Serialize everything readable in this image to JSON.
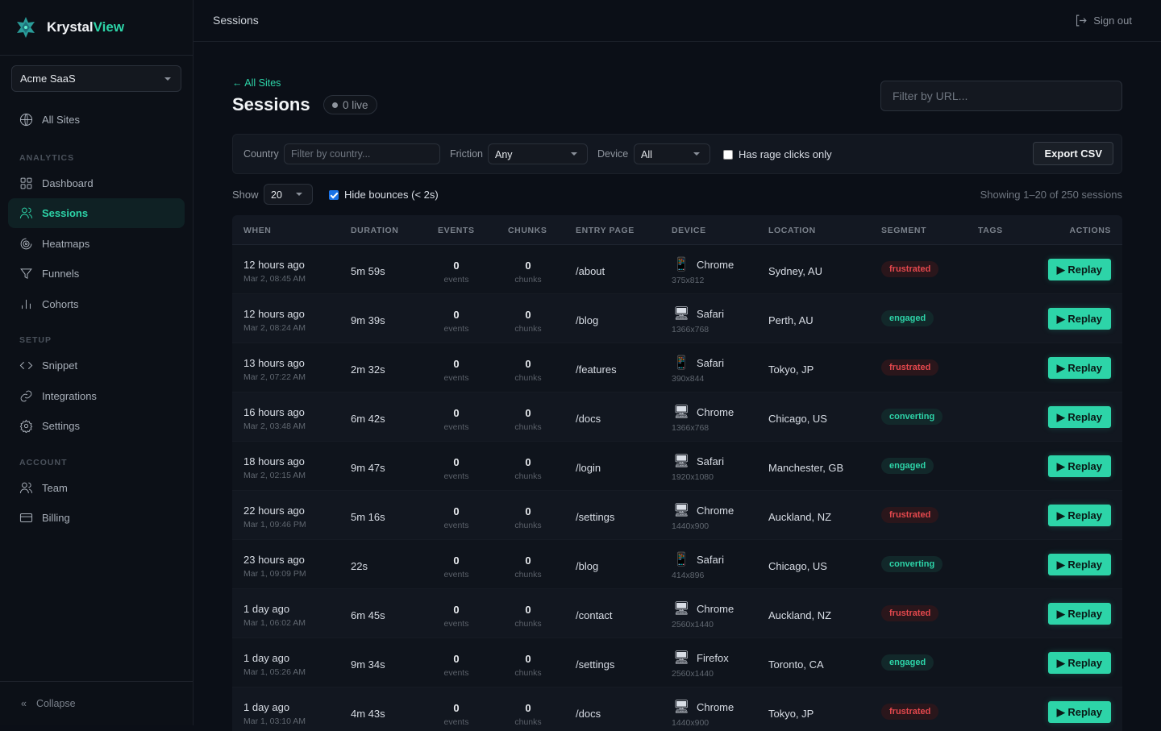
{
  "brand": {
    "name_part1": "Krystal",
    "name_part2": "View",
    "accent": "#2dd4a8"
  },
  "sidebar": {
    "site_selector": "Acme SaaS",
    "all_sites": "All Sites",
    "sections": {
      "analytics": "ANALYTICS",
      "setup": "SETUP",
      "account": "ACCOUNT"
    },
    "items": [
      {
        "label": "Dashboard",
        "icon": "grid-icon"
      },
      {
        "label": "Sessions",
        "icon": "users-icon",
        "active": true
      },
      {
        "label": "Heatmaps",
        "icon": "target-icon"
      },
      {
        "label": "Funnels",
        "icon": "filter-icon"
      },
      {
        "label": "Cohorts",
        "icon": "bar-chart-icon"
      },
      {
        "label": "Snippet",
        "icon": "code-icon"
      },
      {
        "label": "Integrations",
        "icon": "link-icon"
      },
      {
        "label": "Settings",
        "icon": "gear-icon"
      },
      {
        "label": "Team",
        "icon": "users-icon"
      },
      {
        "label": "Billing",
        "icon": "credit-card-icon"
      }
    ],
    "collapse": "Collapse"
  },
  "topbar": {
    "title": "Sessions",
    "sign_out": "Sign out"
  },
  "page": {
    "back": "← All Sites",
    "title": "Sessions",
    "live": "0 live",
    "url_filter_placeholder": "Filter by URL..."
  },
  "filters": {
    "country_label": "Country",
    "country_placeholder": "Filter by country...",
    "friction_label": "Friction",
    "friction_value": "Any",
    "device_label": "Device",
    "device_value": "All",
    "rage_label": "Has rage clicks only",
    "rage_checked": false,
    "export": "Export CSV"
  },
  "list": {
    "show_label": "Show",
    "show_value": "20",
    "hide_bounces": "Hide bounces (< 2s)",
    "hide_bounces_checked": true,
    "showing": "Showing 1–20 of 250 sessions"
  },
  "table": {
    "headers": [
      "WHEN",
      "DURATION",
      "EVENTS",
      "CHUNKS",
      "ENTRY PAGE",
      "DEVICE",
      "LOCATION",
      "SEGMENT",
      "TAGS",
      "ACTIONS"
    ],
    "events_unit": "events",
    "chunks_unit": "chunks",
    "replay_label": "▶ Replay",
    "segment_colors": {
      "frustrated": {
        "fg": "#e5484d",
        "bg": "#2a161b"
      },
      "engaged": {
        "fg": "#2dd4a8",
        "bg": "#12282a"
      },
      "converting": {
        "fg": "#2dd4a8",
        "bg": "#12282a"
      }
    },
    "rows": [
      {
        "when": "12 hours ago",
        "date": "Mar 2, 08:45 AM",
        "duration": "5m 59s",
        "events": "0",
        "chunks": "0",
        "entry": "/about",
        "device": "mobile",
        "browser": "Chrome",
        "res": "375x812",
        "location": "Sydney, AU",
        "segment": "frustrated"
      },
      {
        "when": "12 hours ago",
        "date": "Mar 2, 08:24 AM",
        "duration": "9m 39s",
        "events": "0",
        "chunks": "0",
        "entry": "/blog",
        "device": "desktop",
        "browser": "Safari",
        "res": "1366x768",
        "location": "Perth, AU",
        "segment": "engaged"
      },
      {
        "when": "13 hours ago",
        "date": "Mar 2, 07:22 AM",
        "duration": "2m 32s",
        "events": "0",
        "chunks": "0",
        "entry": "/features",
        "device": "mobile",
        "browser": "Safari",
        "res": "390x844",
        "location": "Tokyo, JP",
        "segment": "frustrated"
      },
      {
        "when": "16 hours ago",
        "date": "Mar 2, 03:48 AM",
        "duration": "6m 42s",
        "events": "0",
        "chunks": "0",
        "entry": "/docs",
        "device": "desktop",
        "browser": "Chrome",
        "res": "1366x768",
        "location": "Chicago, US",
        "segment": "converting"
      },
      {
        "when": "18 hours ago",
        "date": "Mar 2, 02:15 AM",
        "duration": "9m 47s",
        "events": "0",
        "chunks": "0",
        "entry": "/login",
        "device": "desktop",
        "browser": "Safari",
        "res": "1920x1080",
        "location": "Manchester, GB",
        "segment": "engaged"
      },
      {
        "when": "22 hours ago",
        "date": "Mar 1, 09:46 PM",
        "duration": "5m 16s",
        "events": "0",
        "chunks": "0",
        "entry": "/settings",
        "device": "desktop",
        "browser": "Chrome",
        "res": "1440x900",
        "location": "Auckland, NZ",
        "segment": "frustrated"
      },
      {
        "when": "23 hours ago",
        "date": "Mar 1, 09:09 PM",
        "duration": "22s",
        "events": "0",
        "chunks": "0",
        "entry": "/blog",
        "device": "mobile",
        "browser": "Safari",
        "res": "414x896",
        "location": "Chicago, US",
        "segment": "converting"
      },
      {
        "when": "1 day ago",
        "date": "Mar 1, 06:02 AM",
        "duration": "6m 45s",
        "events": "0",
        "chunks": "0",
        "entry": "/contact",
        "device": "desktop",
        "browser": "Chrome",
        "res": "2560x1440",
        "location": "Auckland, NZ",
        "segment": "frustrated"
      },
      {
        "when": "1 day ago",
        "date": "Mar 1, 05:26 AM",
        "duration": "9m 34s",
        "events": "0",
        "chunks": "0",
        "entry": "/settings",
        "device": "desktop",
        "browser": "Firefox",
        "res": "2560x1440",
        "location": "Toronto, CA",
        "segment": "engaged"
      },
      {
        "when": "1 day ago",
        "date": "Mar 1, 03:10 AM",
        "duration": "4m 43s",
        "events": "0",
        "chunks": "0",
        "entry": "/docs",
        "device": "desktop",
        "browser": "Chrome",
        "res": "1440x900",
        "location": "Tokyo, JP",
        "segment": "frustrated"
      }
    ]
  }
}
